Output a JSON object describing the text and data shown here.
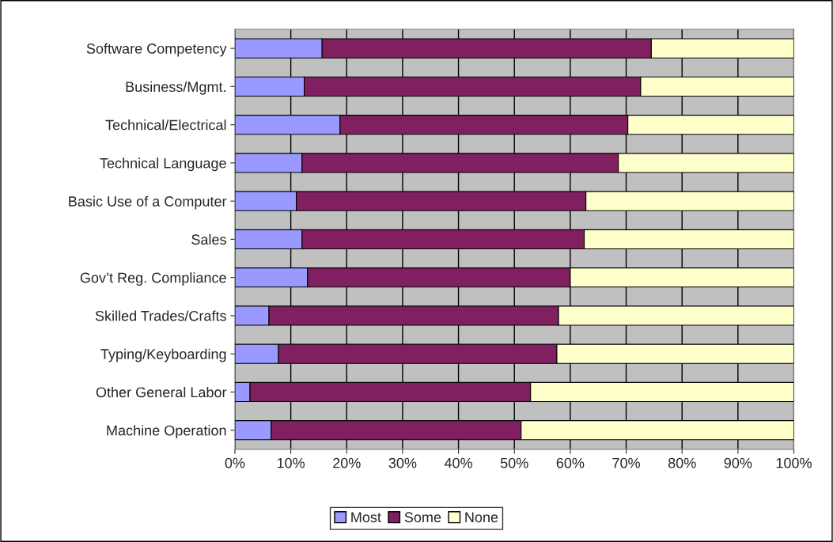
{
  "chart_data": {
    "type": "bar",
    "orientation": "horizontal",
    "stacked": true,
    "categories": [
      "Software Competency",
      "Business/Mgmt.",
      "Technical/Electrical",
      "Technical Language",
      "Basic Use of a Computer",
      "Sales",
      "Gov’t Reg. Compliance",
      "Skilled Trades/Crafts",
      "Typing/Keyboarding",
      "Other General Labor",
      "Machine Operation"
    ],
    "series": [
      {
        "name": "Most",
        "color": "#9999ff",
        "values": [
          15.6,
          12.4,
          18.8,
          12.0,
          11.0,
          12.0,
          13.0,
          6.1,
          7.8,
          2.7,
          6.5
        ]
      },
      {
        "name": "Some",
        "color": "#802060",
        "values": [
          58.9,
          60.2,
          51.5,
          56.6,
          51.8,
          50.5,
          47.0,
          51.8,
          49.8,
          50.2,
          44.7
        ]
      },
      {
        "name": "None",
        "color": "#ffffcc",
        "values": [
          25.5,
          27.4,
          29.7,
          31.4,
          37.2,
          37.5,
          40.0,
          42.1,
          42.4,
          47.1,
          48.8
        ]
      }
    ],
    "xlim": [
      0,
      100
    ],
    "xticks": [
      {
        "value": 0,
        "label": "0%"
      },
      {
        "value": 10,
        "label": "10%"
      },
      {
        "value": 20,
        "label": "20%"
      },
      {
        "value": 30,
        "label": "30%"
      },
      {
        "value": 40,
        "label": "40%"
      },
      {
        "value": 50,
        "label": "50%"
      },
      {
        "value": 60,
        "label": "60%"
      },
      {
        "value": 70,
        "label": "70%"
      },
      {
        "value": 80,
        "label": "80%"
      },
      {
        "value": 90,
        "label": "90%"
      },
      {
        "value": 100,
        "label": "100%"
      }
    ],
    "grid": "x",
    "legend": "bottom"
  }
}
